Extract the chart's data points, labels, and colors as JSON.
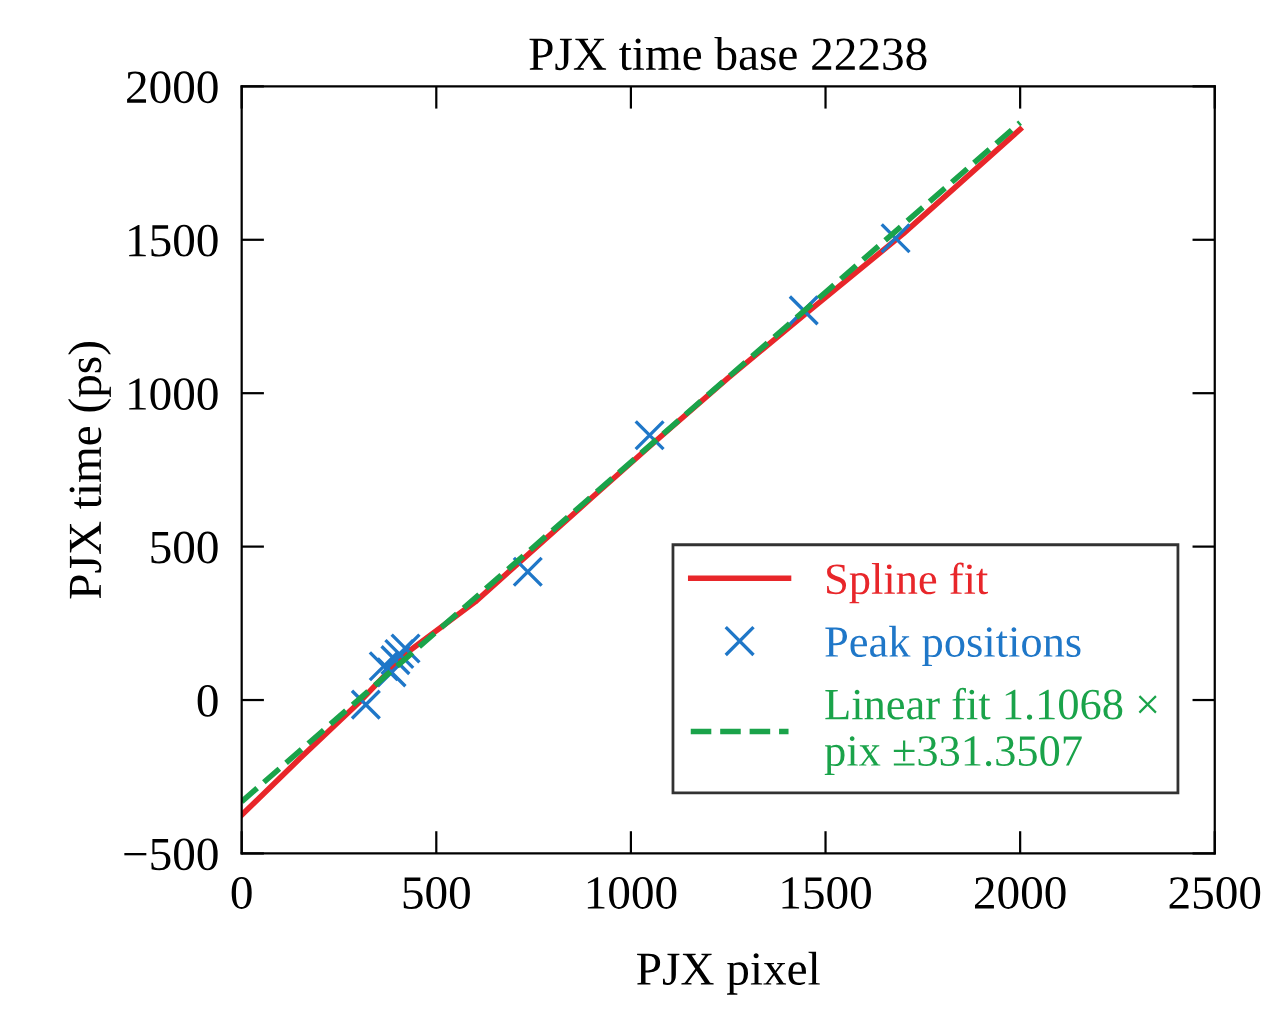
{
  "chart_data": {
    "type": "line",
    "title": "PJX time base 22238",
    "xlabel": "PJX pixel",
    "ylabel": "PJX time (ps)",
    "xlim": [
      0,
      2500
    ],
    "xticks": [
      0,
      500,
      1000,
      1500,
      2000,
      2500
    ],
    "ylim": [
      -500,
      2000
    ],
    "yticks": [
      {
        "value": -500,
        "label": "−500"
      },
      0,
      500,
      1000,
      1500,
      2000
    ],
    "grid": false,
    "legend": "bottom right",
    "series": [
      {
        "name": "Spline fit",
        "color": "#e8262a",
        "line_style": "solid",
        "marker": "none",
        "x": [
          0,
          150,
          300,
          420,
          600,
          750,
          900,
          1060,
          1250,
          1450,
          1700,
          2000
        ],
        "values": [
          -375,
          -190,
          -10,
          150,
          320,
          490,
          660,
          840,
          1050,
          1260,
          1520,
          1860
        ]
      },
      {
        "name": "Peak positions",
        "type": "scatter",
        "color": "#1f77c8",
        "marker": "cross",
        "x": [
          319,
          365,
          385,
          395,
          405,
          421,
          735,
          1048,
          1444,
          1680
        ],
        "values": [
          -15,
          110,
          90,
          130,
          150,
          168,
          418,
          863,
          1270,
          1505
        ]
      },
      {
        "name": "Linear fit 1.1068 × pix ±331.3507",
        "color": "#1aa34a",
        "line_style": "dashed",
        "marker": "none",
        "x": [
          0,
          2000
        ],
        "values": [
          -331,
          1882
        ]
      }
    ]
  }
}
